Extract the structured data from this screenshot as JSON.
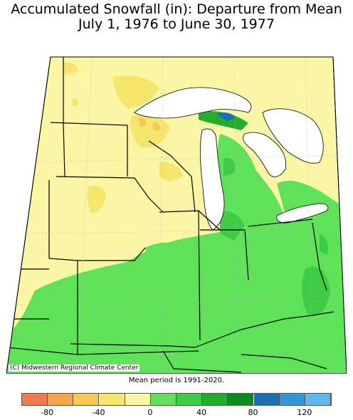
{
  "title": {
    "line1": "Accumulated Snowfall (in): Departure from Mean",
    "line2": "July 1, 1976 to June 30, 1977"
  },
  "credit": "(C) Midwestern Regional Climate Center",
  "mean_period_note": "Mean period is 1991-2020.",
  "legend": {
    "bins": [
      {
        "color": "#f4794a"
      },
      {
        "color": "#f8a444"
      },
      {
        "color": "#f8c850"
      },
      {
        "color": "#f6e56c"
      },
      {
        "color": "#fbf6a6"
      },
      {
        "color": "#5fe25a"
      },
      {
        "color": "#3ecb45"
      },
      {
        "color": "#20ae2c"
      },
      {
        "color": "#0c8c1e"
      },
      {
        "color": "#1a6fb5"
      },
      {
        "color": "#3296d8"
      },
      {
        "color": "#5ab9ee"
      }
    ],
    "tick_labels": [
      "-80",
      "-40",
      "0",
      "40",
      "80",
      "120"
    ]
  }
}
